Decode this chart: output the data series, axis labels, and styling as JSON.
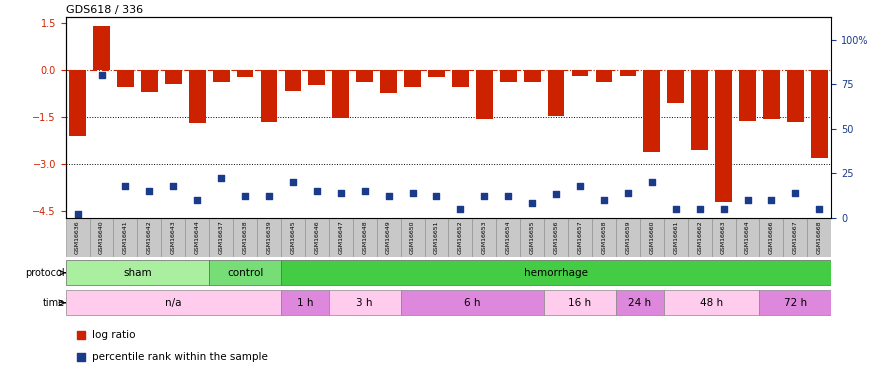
{
  "title": "GDS618 / 336",
  "samples": [
    "GSM16636",
    "GSM16640",
    "GSM16641",
    "GSM16642",
    "GSM16643",
    "GSM16644",
    "GSM16637",
    "GSM16638",
    "GSM16639",
    "GSM16645",
    "GSM16646",
    "GSM16647",
    "GSM16648",
    "GSM16649",
    "GSM16650",
    "GSM16651",
    "GSM16652",
    "GSM16653",
    "GSM16654",
    "GSM16655",
    "GSM16656",
    "GSM16657",
    "GSM16658",
    "GSM16659",
    "GSM16660",
    "GSM16661",
    "GSM16662",
    "GSM16663",
    "GSM16664",
    "GSM16666",
    "GSM16667",
    "GSM16668"
  ],
  "log_ratio": [
    -2.1,
    1.42,
    -0.55,
    -0.7,
    -0.45,
    -1.7,
    -0.38,
    -0.22,
    -1.65,
    -0.65,
    -0.48,
    -1.52,
    -0.38,
    -0.72,
    -0.55,
    -0.22,
    -0.55,
    -1.55,
    -0.38,
    -0.38,
    -1.45,
    -0.2,
    -0.38,
    -0.18,
    -2.6,
    -1.05,
    -2.55,
    -4.2,
    -1.62,
    -1.55,
    -1.65,
    -2.8
  ],
  "percentile_rank": [
    2,
    80,
    18,
    15,
    18,
    10,
    22,
    12,
    12,
    20,
    15,
    14,
    15,
    12,
    14,
    12,
    5,
    12,
    12,
    8,
    13,
    18,
    10,
    14,
    20,
    5,
    5,
    5,
    10,
    10,
    14,
    5
  ],
  "bar_color": "#CC2200",
  "dot_color": "#1A3A8A",
  "ylim_left": [
    -4.7,
    1.7
  ],
  "ylim_right": [
    0,
    113.0
  ],
  "yticks_left": [
    1.5,
    0,
    -1.5,
    -3.0,
    -4.5
  ],
  "yticks_right": [
    0,
    25,
    50,
    75,
    100
  ],
  "ytick_labels_right": [
    "0",
    "25",
    "50",
    "75",
    "100%"
  ],
  "protocol_groups": [
    {
      "label": "sham",
      "start": 0,
      "end": 6,
      "color": "#AAEEA0"
    },
    {
      "label": "control",
      "start": 6,
      "end": 9,
      "color": "#77DD77"
    },
    {
      "label": "hemorrhage",
      "start": 9,
      "end": 32,
      "color": "#44CC44"
    }
  ],
  "time_groups": [
    {
      "label": "n/a",
      "start": 0,
      "end": 9,
      "color": "#FFCCEE"
    },
    {
      "label": "1 h",
      "start": 9,
      "end": 11,
      "color": "#DD88DD"
    },
    {
      "label": "3 h",
      "start": 11,
      "end": 14,
      "color": "#FFCCEE"
    },
    {
      "label": "6 h",
      "start": 14,
      "end": 20,
      "color": "#DD88DD"
    },
    {
      "label": "16 h",
      "start": 20,
      "end": 23,
      "color": "#FFCCEE"
    },
    {
      "label": "24 h",
      "start": 23,
      "end": 25,
      "color": "#DD88DD"
    },
    {
      "label": "48 h",
      "start": 25,
      "end": 29,
      "color": "#FFCCEE"
    },
    {
      "label": "72 h",
      "start": 29,
      "end": 32,
      "color": "#DD88DD"
    }
  ]
}
